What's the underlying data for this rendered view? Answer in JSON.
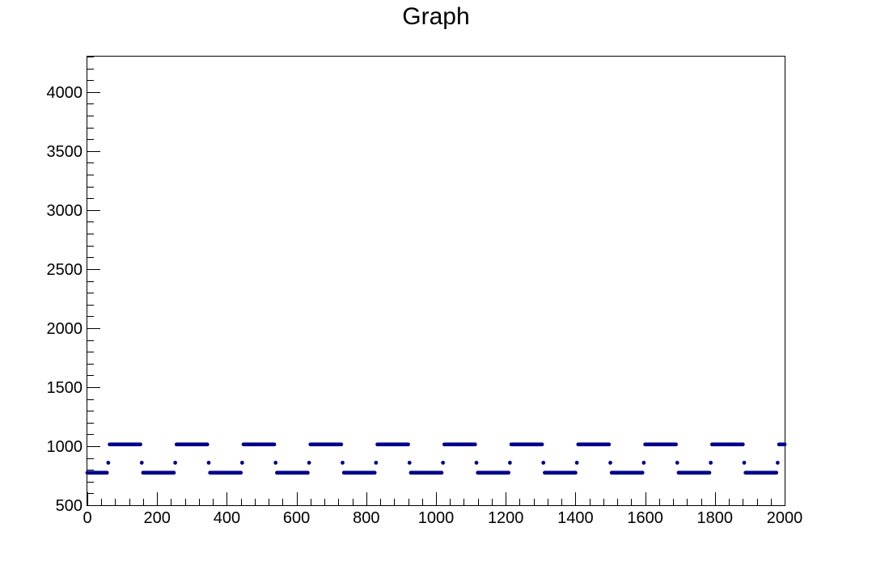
{
  "chart_data": {
    "type": "scatter",
    "title": "Graph",
    "xlabel": "",
    "ylabel": "",
    "xlim": [
      0,
      2000
    ],
    "ylim": [
      500,
      4300
    ],
    "x_ticks": [
      0,
      200,
      400,
      600,
      800,
      1000,
      1200,
      1400,
      1600,
      1800,
      2000
    ],
    "y_ticks": [
      500,
      1000,
      1500,
      2000,
      2500,
      3000,
      3500,
      4000
    ],
    "grid": false,
    "marker_color": "#00008b",
    "signal": {
      "shape": "periodic square wave",
      "period": 192,
      "low_value": 775,
      "high_value": 1015,
      "transition_value": 860,
      "x_step": 4,
      "first_rise_x": 60
    },
    "series": [
      {
        "x": [
          0,
          60,
          64,
          68,
          152,
          156,
          248,
          252,
          256,
          344,
          348
        ],
        "y": [
          775,
          775,
          860,
          1015,
          1015,
          860,
          775,
          860,
          1015,
          1015,
          860
        ]
      }
    ]
  }
}
